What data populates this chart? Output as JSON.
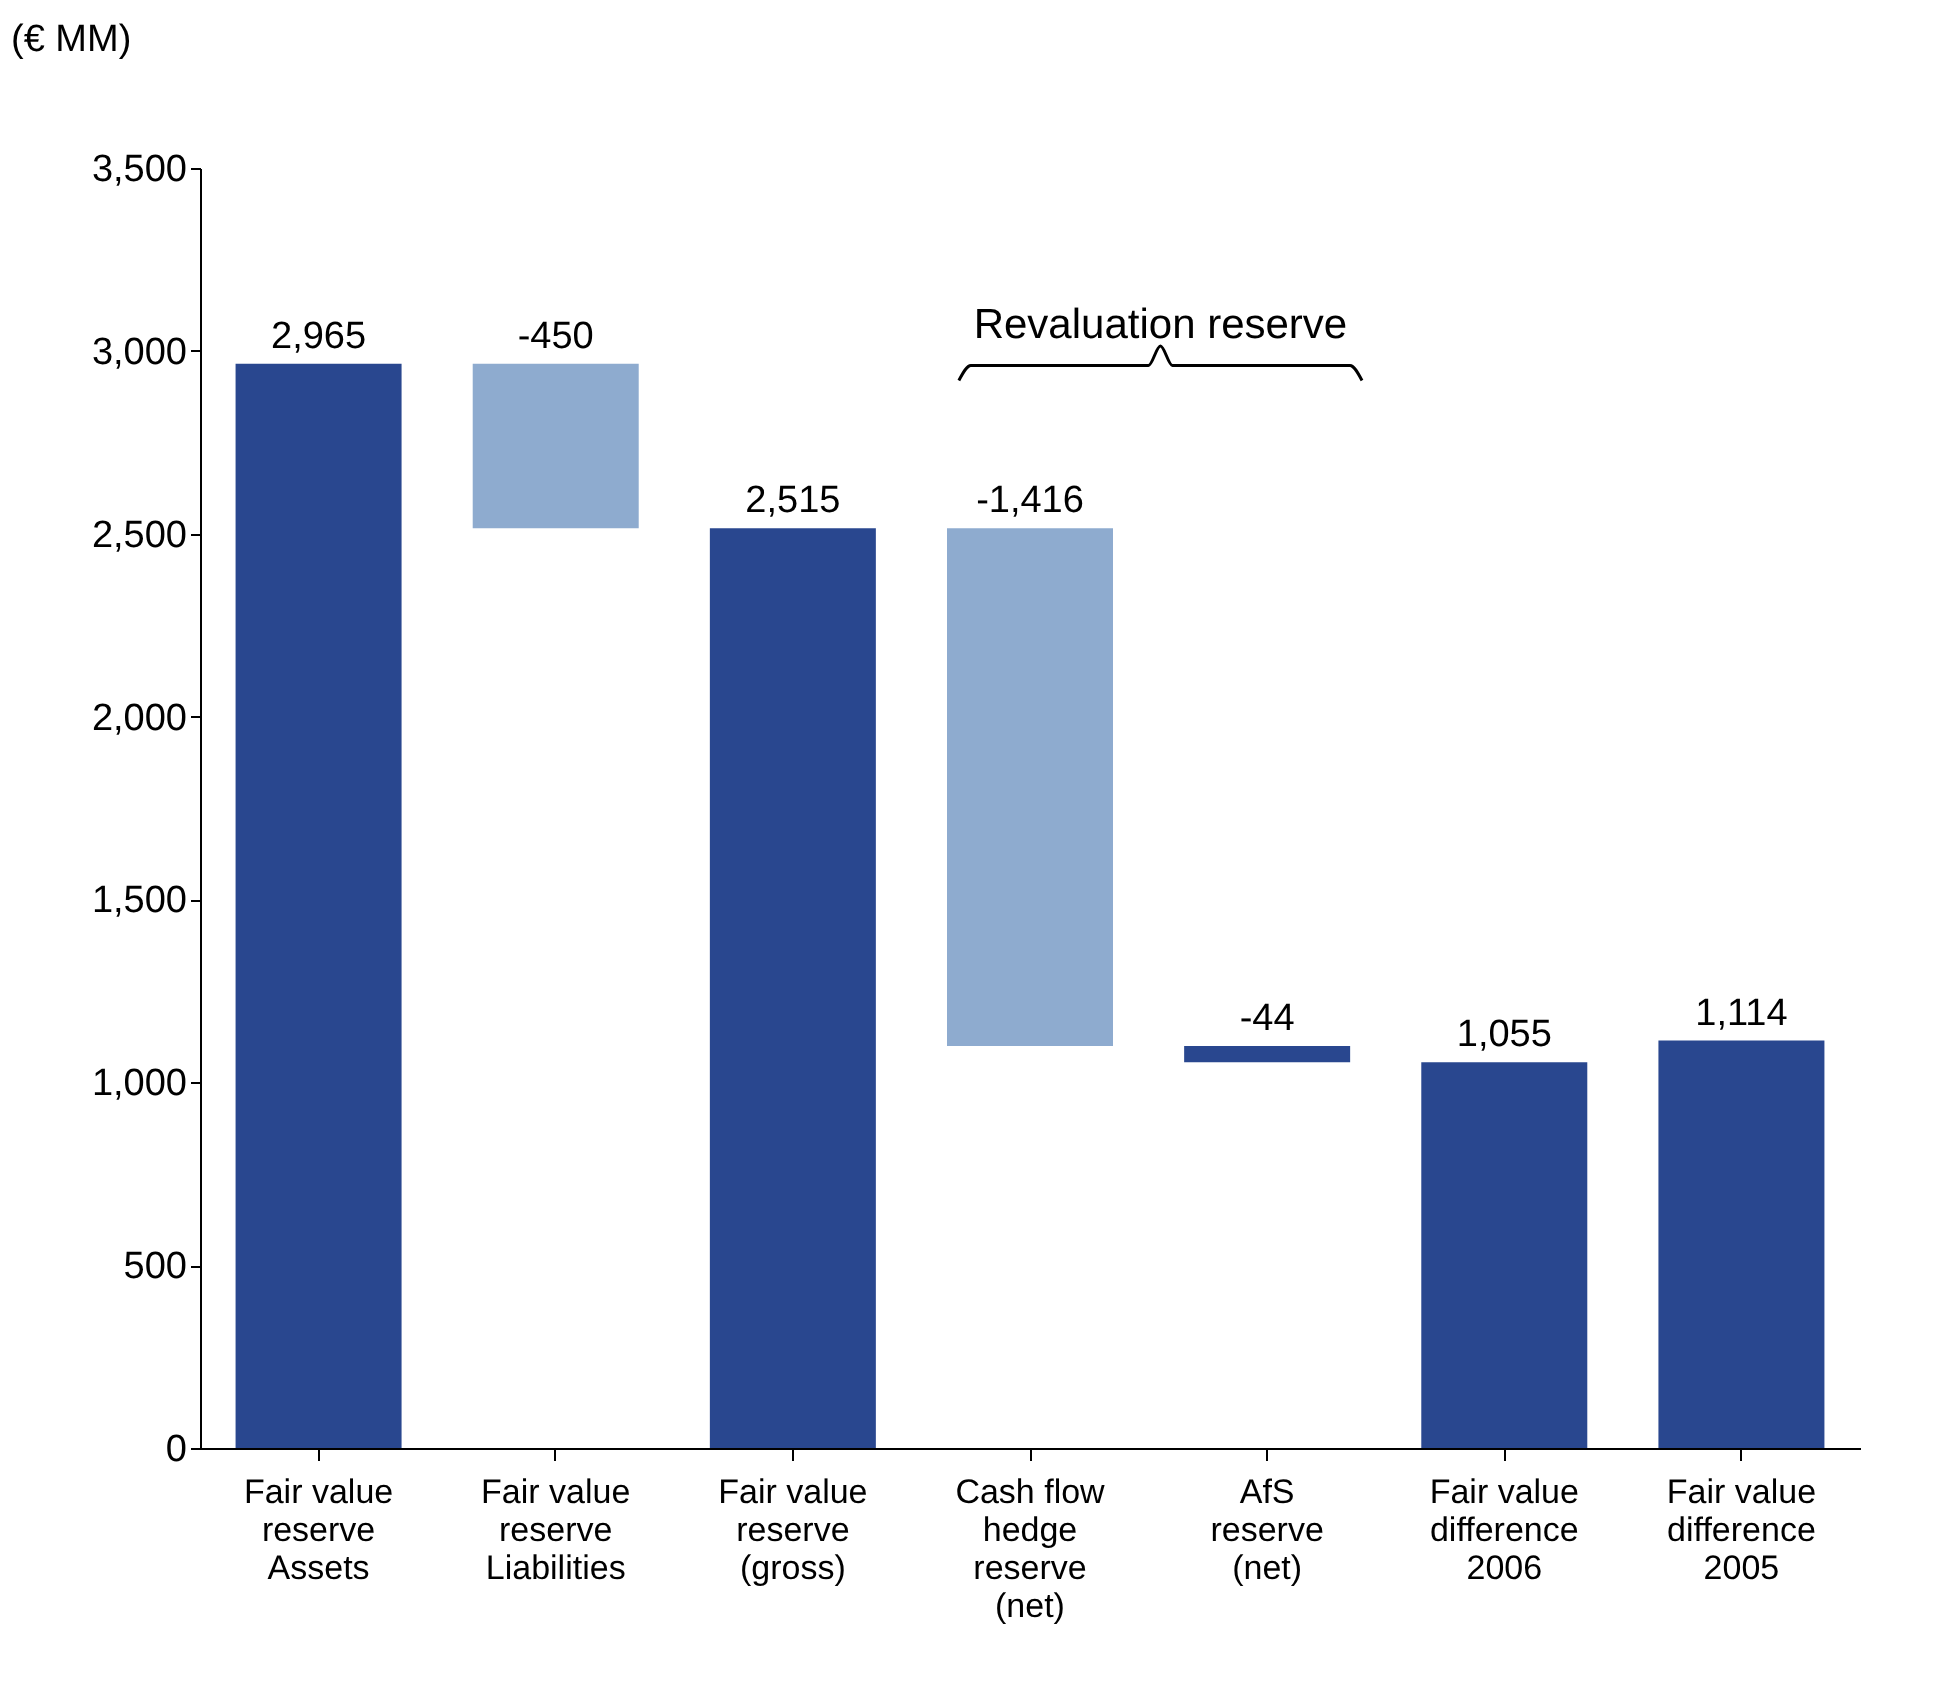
{
  "chart_data": {
    "type": "bar",
    "ylabel": "(€ MM)",
    "categories": [
      "Fair value\nreserve\nAssets",
      "Fair value\nreserve\nLiabilities",
      "Fair value\nreserve\n(gross)",
      "Cash flow\nhedge\nreserve\n(net)",
      "AfS\nreserve\n(net)",
      "Fair value\ndifference\n2006",
      "Fair value\ndifference\n2005"
    ],
    "values": [
      2965,
      -450,
      2515,
      -1416,
      -44,
      1055,
      1114
    ],
    "base": [
      0,
      2965,
      0,
      2515,
      1099,
      0,
      0
    ],
    "colors": [
      "#29478f",
      "#8eabcf",
      "#29478f",
      "#8eabcf",
      "#29478f",
      "#29478f",
      "#29478f"
    ],
    "value_labels": [
      "2,965",
      "-450",
      "2,515",
      "-1,416",
      "-44",
      "1,055",
      "1,114"
    ],
    "ylim": [
      0,
      3500
    ],
    "yticks": [
      0,
      500,
      {
        "value": 1000,
        "label": "1,000"
      },
      {
        "value": 1500,
        "label": "1,500"
      },
      {
        "value": 2000,
        "label": "2,000"
      },
      {
        "value": 2500,
        "label": "2,500"
      },
      {
        "value": 3000,
        "label": "3,000"
      },
      {
        "value": 3500,
        "label": "3,500"
      }
    ],
    "annotations": [
      "Revaluation reserve"
    ],
    "grid": false
  }
}
